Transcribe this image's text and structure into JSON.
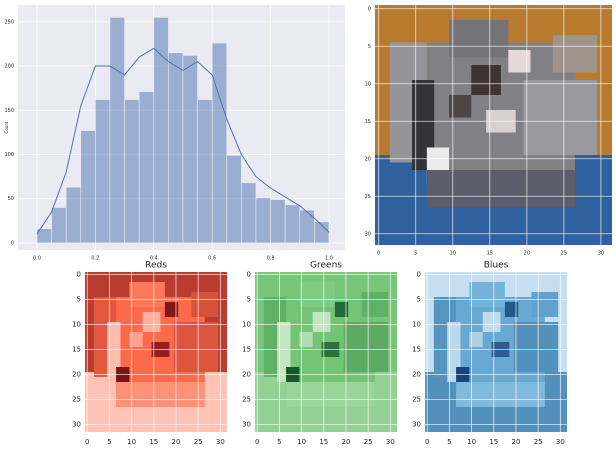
{
  "chart_data": [
    {
      "type": "histogram",
      "ylabel": "Count",
      "color": "#4c72b0",
      "grid": true,
      "bins": [
        0,
        0.05,
        0.1,
        0.15,
        0.2,
        0.25,
        0.3,
        0.35,
        0.4,
        0.45,
        0.5,
        0.55,
        0.6,
        0.65,
        0.7,
        0.75,
        0.8,
        0.85,
        0.9,
        0.95,
        1.0
      ],
      "values": [
        16,
        40,
        63,
        127,
        162,
        255,
        162,
        171,
        255,
        215,
        212,
        162,
        226,
        99,
        68,
        51,
        49,
        43,
        37,
        24
      ],
      "kde": {
        "x": [
          0,
          0.05,
          0.1,
          0.15,
          0.2,
          0.25,
          0.3,
          0.35,
          0.4,
          0.45,
          0.5,
          0.55,
          0.6,
          0.65,
          0.7,
          0.75,
          0.8,
          0.85,
          0.9,
          0.95,
          1.0
        ],
        "values": [
          10,
          35,
          80,
          155,
          200,
          200,
          190,
          210,
          220,
          205,
          195,
          205,
          190,
          140,
          100,
          75,
          62,
          52,
          42,
          28,
          12
        ]
      },
      "xlim": [
        -0.065,
        1.055
      ],
      "ylim": [
        -8,
        269
      ],
      "xticks": [
        {
          "value": 0,
          "label": "0.0"
        },
        {
          "value": 0.2,
          "label": "0.2"
        },
        {
          "value": 0.4,
          "label": "0.4"
        },
        {
          "value": 0.6,
          "label": "0.6"
        },
        {
          "value": 0.8,
          "label": "0.8"
        },
        {
          "value": 1,
          "label": "1.0"
        }
      ],
      "yticks": [
        0,
        50,
        100,
        150,
        200,
        250
      ]
    },
    {
      "type": "image",
      "xlim": [
        -0.5,
        31.5
      ],
      "ylim": [
        31.5,
        -0.5
      ],
      "xticks": [
        0,
        5,
        10,
        15,
        20,
        25,
        30
      ],
      "yticks": [
        0,
        5,
        10,
        15,
        20,
        25,
        30
      ]
    },
    {
      "type": "heatmap",
      "title": "Reds",
      "channel": 0,
      "cmap": [
        "#fff5f0",
        "#fb6a4a",
        "#67000d"
      ],
      "xlim": [
        -0.5,
        31.5
      ],
      "ylim": [
        31.5,
        -0.5
      ],
      "xticks": [
        0,
        5,
        10,
        15,
        20,
        25,
        30
      ],
      "yticks": [
        0,
        5,
        10,
        15,
        20,
        25,
        30
      ]
    },
    {
      "type": "heatmap",
      "title": "Greens",
      "channel": 1,
      "cmap": [
        "#f7fcf5",
        "#74c476",
        "#00441b"
      ],
      "xlim": [
        -0.5,
        31.5
      ],
      "ylim": [
        31.5,
        -0.5
      ],
      "xticks": [
        0,
        5,
        10,
        15,
        20,
        25,
        30
      ],
      "yticks": [
        0,
        5,
        10,
        15,
        20,
        25,
        30
      ]
    },
    {
      "type": "heatmap",
      "title": "Blues",
      "channel": 2,
      "cmap": [
        "#f7fbff",
        "#6baed6",
        "#08306b"
      ],
      "xlim": [
        -0.5,
        31.5
      ],
      "ylim": [
        31.5,
        -0.5
      ],
      "xticks": [
        0,
        5,
        10,
        15,
        20,
        25,
        30
      ],
      "yticks": [
        0,
        5,
        10,
        15,
        20,
        25,
        30
      ]
    }
  ]
}
